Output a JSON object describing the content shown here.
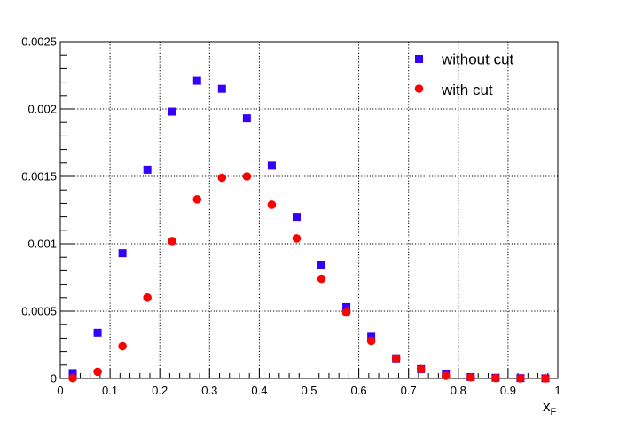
{
  "chart_data": {
    "type": "scatter",
    "title": "",
    "xlabel": "x",
    "xlabel_subscript": "F",
    "ylabel": "",
    "xlim": [
      0,
      1
    ],
    "ylim": [
      0,
      0.0025
    ],
    "grid": true,
    "legend_position": "top-right",
    "x_ticks": [
      {
        "value": 0,
        "label": "0"
      },
      {
        "value": 0.1,
        "label": "0.1"
      },
      {
        "value": 0.2,
        "label": "0.2"
      },
      {
        "value": 0.3,
        "label": "0.3"
      },
      {
        "value": 0.4,
        "label": "0.4"
      },
      {
        "value": 0.5,
        "label": "0.5"
      },
      {
        "value": 0.6,
        "label": "0.6"
      },
      {
        "value": 0.7,
        "label": "0.7"
      },
      {
        "value": 0.8,
        "label": "0.8"
      },
      {
        "value": 0.9,
        "label": "0.9"
      },
      {
        "value": 1,
        "label": "1"
      }
    ],
    "y_ticks": [
      {
        "value": 0,
        "label": "0"
      },
      {
        "value": 0.0005,
        "label": "0.0005"
      },
      {
        "value": 0.001,
        "label": "0.001"
      },
      {
        "value": 0.0015,
        "label": "0.0015"
      },
      {
        "value": 0.002,
        "label": "0.002"
      },
      {
        "value": 0.0025,
        "label": "0.0025"
      }
    ],
    "series": [
      {
        "name": "without cut",
        "marker": "square",
        "color": "#3300ff",
        "points": [
          {
            "x": 0.025,
            "y": 4e-05
          },
          {
            "x": 0.075,
            "y": 0.00034
          },
          {
            "x": 0.125,
            "y": 0.00093
          },
          {
            "x": 0.175,
            "y": 0.00155
          },
          {
            "x": 0.225,
            "y": 0.00198
          },
          {
            "x": 0.275,
            "y": 0.00221
          },
          {
            "x": 0.325,
            "y": 0.00215
          },
          {
            "x": 0.375,
            "y": 0.00193
          },
          {
            "x": 0.425,
            "y": 0.00158
          },
          {
            "x": 0.475,
            "y": 0.0012
          },
          {
            "x": 0.525,
            "y": 0.00084
          },
          {
            "x": 0.575,
            "y": 0.00053
          },
          {
            "x": 0.625,
            "y": 0.00031
          },
          {
            "x": 0.675,
            "y": 0.00015
          },
          {
            "x": 0.725,
            "y": 7e-05
          },
          {
            "x": 0.775,
            "y": 3e-05
          },
          {
            "x": 0.825,
            "y": 1e-05
          },
          {
            "x": 0.875,
            "y": 5e-06
          },
          {
            "x": 0.925,
            "y": 2e-06
          },
          {
            "x": 0.975,
            "y": 1e-06
          }
        ]
      },
      {
        "name": "with cut",
        "marker": "circle",
        "color": "#ff0000",
        "points": [
          {
            "x": 0.025,
            "y": 2e-06
          },
          {
            "x": 0.075,
            "y": 5e-05
          },
          {
            "x": 0.125,
            "y": 0.00024
          },
          {
            "x": 0.175,
            "y": 0.0006
          },
          {
            "x": 0.225,
            "y": 0.00102
          },
          {
            "x": 0.275,
            "y": 0.00133
          },
          {
            "x": 0.325,
            "y": 0.00149
          },
          {
            "x": 0.375,
            "y": 0.0015
          },
          {
            "x": 0.425,
            "y": 0.00129
          },
          {
            "x": 0.475,
            "y": 0.00104
          },
          {
            "x": 0.525,
            "y": 0.00074
          },
          {
            "x": 0.575,
            "y": 0.00049
          },
          {
            "x": 0.625,
            "y": 0.00028
          },
          {
            "x": 0.675,
            "y": 0.00015
          },
          {
            "x": 0.725,
            "y": 7e-05
          },
          {
            "x": 0.775,
            "y": 2e-05
          },
          {
            "x": 0.825,
            "y": 8e-06
          },
          {
            "x": 0.875,
            "y": 3e-06
          },
          {
            "x": 0.925,
            "y": 1e-06
          },
          {
            "x": 0.975,
            "y": 5e-07
          }
        ]
      }
    ]
  }
}
